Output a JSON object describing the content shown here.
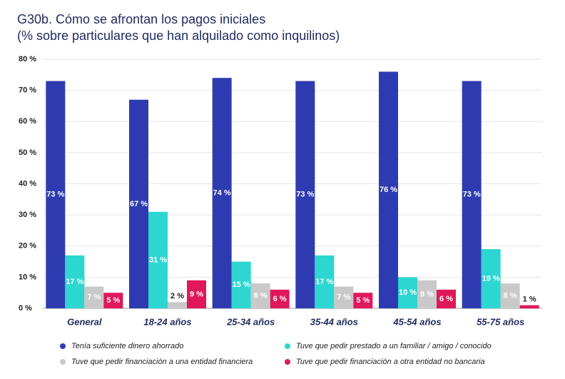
{
  "chart_data": {
    "type": "bar",
    "title": "G30b. Cómo se afrontan los pagos iniciales",
    "subtitle": "(% sobre particulares que han alquilado como inquilinos)",
    "categories": [
      "General",
      "18-24 años",
      "25-34 años",
      "35-44 años",
      "45-54 años",
      "55-75 años"
    ],
    "series": [
      {
        "name": "Tenía suficiente dinero ahorrado",
        "color": "#2e3bb0",
        "values": [
          73,
          67,
          74,
          73,
          76,
          73
        ],
        "value_labels": [
          "73 %",
          "67 %",
          "74 %",
          "73 %",
          "76 %",
          "73 %"
        ]
      },
      {
        "name": "Tuve que pedir prestado a un familiar / amigo / conocido",
        "color": "#2dd6d0",
        "values": [
          17,
          31,
          15,
          17,
          10,
          19
        ],
        "value_labels": [
          "17 %",
          "31 %",
          "15 %",
          "17 %",
          "10 %",
          "19 %"
        ]
      },
      {
        "name": "Tuve que pedir financiación a una entidad financiera",
        "color": "#c9c9c9",
        "values": [
          7,
          2,
          8,
          7,
          9,
          8
        ],
        "value_labels": [
          "7 %",
          "2 %",
          "8 %",
          "7 %",
          "9 %",
          "8 %"
        ]
      },
      {
        "name": "Tuve que pedir financiación a otra entidad no bancaria",
        "color": "#e0185a",
        "values": [
          5,
          9,
          6,
          5,
          6,
          1
        ],
        "value_labels": [
          "5 %",
          "9 %",
          "6 %",
          "5 %",
          "6 %",
          "1 %"
        ]
      }
    ],
    "ylim": [
      0,
      80
    ],
    "yticks": [
      {
        "value": 0,
        "label": "0 %"
      },
      {
        "value": 10,
        "label": "10 %"
      },
      {
        "value": 20,
        "label": "20 %"
      },
      {
        "value": 30,
        "label": "30 %"
      },
      {
        "value": 40,
        "label": "40 %"
      },
      {
        "value": 50,
        "label": "50 %"
      },
      {
        "value": 60,
        "label": "60 %"
      },
      {
        "value": 70,
        "label": "70 %"
      },
      {
        "value": 80,
        "label": "80 %"
      }
    ],
    "grid": true
  }
}
